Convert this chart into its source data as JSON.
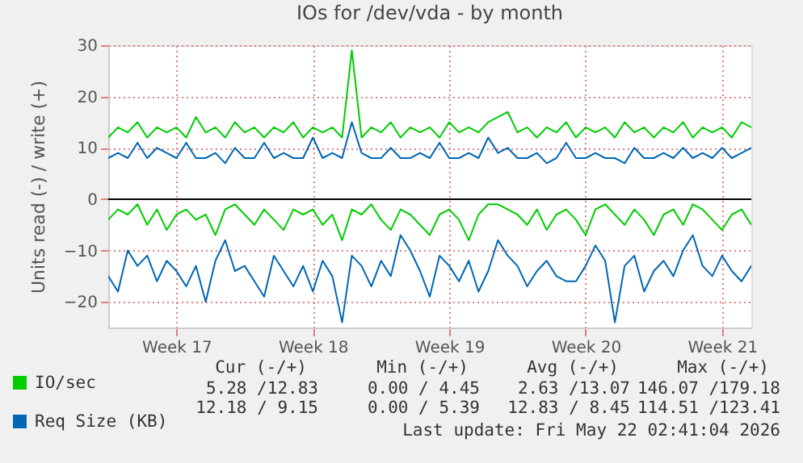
{
  "chart_data": {
    "type": "line",
    "title": "IOs for /dev/vda - by month",
    "ylabel": "Units read (-) / write (+)",
    "x": [
      "2026-04-20T00:00",
      "2026-04-20T12:00",
      "2026-04-21T00:00",
      "2026-04-21T12:00",
      "2026-04-22T00:00",
      "2026-04-22T12:00",
      "2026-04-23T00:00",
      "2026-04-23T12:00",
      "2026-04-24T00:00",
      "2026-04-24T12:00",
      "2026-04-25T00:00",
      "2026-04-25T12:00",
      "2026-04-26T00:00",
      "2026-04-26T12:00",
      "2026-04-27T00:00",
      "2026-04-27T12:00",
      "2026-04-28T00:00",
      "2026-04-28T12:00",
      "2026-04-29T00:00",
      "2026-04-29T12:00",
      "2026-04-30T00:00",
      "2026-04-30T12:00",
      "2026-05-01T00:00",
      "2026-05-01T12:00",
      "2026-05-02T00:00",
      "2026-05-02T12:00",
      "2026-05-03T00:00",
      "2026-05-03T12:00",
      "2026-05-04T00:00",
      "2026-05-04T12:00",
      "2026-05-05T00:00",
      "2026-05-05T12:00",
      "2026-05-06T00:00",
      "2026-05-06T12:00",
      "2026-05-07T00:00",
      "2026-05-07T12:00",
      "2026-05-08T00:00",
      "2026-05-08T12:00",
      "2026-05-09T00:00",
      "2026-05-09T12:00",
      "2026-05-10T00:00",
      "2026-05-10T12:00",
      "2026-05-11T00:00",
      "2026-05-11T12:00",
      "2026-05-12T00:00",
      "2026-05-12T12:00",
      "2026-05-13T00:00",
      "2026-05-13T12:00",
      "2026-05-14T00:00",
      "2026-05-14T12:00",
      "2026-05-15T00:00",
      "2026-05-15T12:00",
      "2026-05-16T00:00",
      "2026-05-16T12:00",
      "2026-05-17T00:00",
      "2026-05-17T12:00",
      "2026-05-18T00:00",
      "2026-05-18T12:00",
      "2026-05-19T00:00",
      "2026-05-19T12:00",
      "2026-05-20T00:00",
      "2026-05-20T12:00",
      "2026-05-21T00:00",
      "2026-05-21T12:00",
      "2026-05-22T00:00",
      "2026-05-22T12:00",
      "2026-05-23T00:00"
    ],
    "series": [
      {
        "name": "IO/sec",
        "color": "#00cc00",
        "values": [
          12,
          14,
          13,
          15,
          12,
          14,
          13,
          14,
          12,
          16,
          13,
          14,
          12,
          15,
          13,
          14,
          12,
          14,
          13,
          15,
          12,
          14,
          13,
          14,
          12,
          29,
          12,
          14,
          13,
          15,
          12,
          14,
          13,
          14,
          12,
          15,
          13,
          14,
          13,
          15,
          16,
          17,
          13,
          14,
          12,
          14,
          13,
          15,
          12,
          14,
          13,
          14,
          12,
          15,
          13,
          14,
          12,
          14,
          13,
          15,
          12,
          14,
          13,
          14,
          12,
          15,
          14
        ]
      },
      {
        "color": "#00cc00",
        "values": [
          -4,
          -2,
          -3,
          -1,
          -5,
          -2,
          -6,
          -3,
          -2,
          -4,
          -3,
          -7,
          -2,
          -1,
          -3,
          -5,
          -2,
          -4,
          -6,
          -2,
          -3,
          -2,
          -5,
          -3,
          -8,
          -2,
          -3,
          -1,
          -4,
          -6,
          -2,
          -3,
          -5,
          -7,
          -3,
          -2,
          -4,
          -8,
          -3,
          -1,
          -1,
          -2,
          -3,
          -5,
          -2,
          -6,
          -3,
          -2,
          -4,
          -7,
          -2,
          -1,
          -3,
          -5,
          -2,
          -4,
          -7,
          -3,
          -2,
          -5,
          -1,
          -2,
          -4,
          -6,
          -3,
          -2,
          -5
        ]
      },
      {
        "name": "Req Size (KB)",
        "color": "#0066b3",
        "values": [
          8,
          9,
          8,
          11,
          8,
          10,
          9,
          8,
          11,
          8,
          8,
          9,
          7,
          10,
          8,
          8,
          11,
          8,
          9,
          8,
          8,
          12,
          8,
          9,
          8,
          15,
          9,
          8,
          8,
          10,
          8,
          8,
          9,
          8,
          11,
          8,
          8,
          9,
          8,
          12,
          9,
          10,
          8,
          8,
          9,
          7,
          8,
          11,
          8,
          8,
          9,
          8,
          8,
          7,
          10,
          8,
          8,
          9,
          8,
          10,
          8,
          9,
          8,
          10,
          8,
          9,
          10
        ]
      },
      {
        "color": "#0066b3",
        "values": [
          -15,
          -18,
          -10,
          -13,
          -11,
          -16,
          -12,
          -14,
          -17,
          -13,
          -20,
          -12,
          -8,
          -14,
          -13,
          -16,
          -19,
          -11,
          -14,
          -17,
          -13,
          -18,
          -12,
          -15,
          -24,
          -11,
          -13,
          -17,
          -12,
          -15,
          -7,
          -10,
          -14,
          -19,
          -11,
          -13,
          -16,
          -12,
          -18,
          -14,
          -8,
          -11,
          -13,
          -17,
          -14,
          -12,
          -15,
          -16,
          -16,
          -13,
          -9,
          -12,
          -24,
          -13,
          -11,
          -18,
          -14,
          -12,
          -15,
          -10,
          -7,
          -13,
          -15,
          -11,
          -14,
          -16,
          -13
        ]
      }
    ],
    "xlim": [
      "2026-04-20T00:00",
      "2026-05-23T00:00"
    ],
    "xticks": [
      {
        "value": "2026-04-23T12:00",
        "label": "Week 17"
      },
      {
        "value": "2026-04-30T12:00",
        "label": "Week 18"
      },
      {
        "value": "2026-05-07T12:00",
        "label": "Week 19"
      },
      {
        "value": "2026-05-14T12:00",
        "label": "Week 20"
      },
      {
        "value": "2026-05-21T12:00",
        "label": "Week 21"
      }
    ],
    "ylim": [
      -25,
      30
    ],
    "yticks": [
      -20,
      -10,
      0,
      10,
      20,
      30
    ],
    "ref_lines": [
      {
        "axis": "y",
        "value": 0,
        "color": "#000000"
      }
    ],
    "grid": true,
    "legend": "bottom left",
    "annotations": [
      "Cur (-/+)",
      "Min (-/+)",
      "Avg (-/+)",
      "Max (-/+)",
      "5.28 /12.83",
      "0.00 / 4.45",
      "2.63 /13.07",
      "146.07 /179.18",
      "12.18 / 9.15",
      "0.00 / 5.39",
      "12.83 / 8.45",
      "114.51 /123.41",
      "Last update: Fri May 22 02:41:04 2026"
    ]
  }
}
